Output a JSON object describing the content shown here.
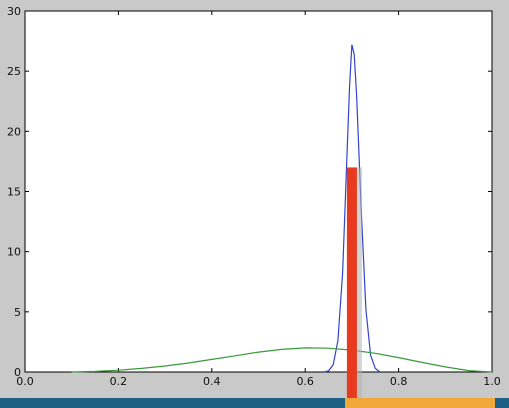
{
  "colors": {
    "background": "#c9c9c9",
    "plot_background": "#ffffff",
    "series_narrow": "#3344cc",
    "series_wide": "#3a9a3a",
    "marker": "#e83a1f",
    "bottom_bar": "#1f5f86",
    "bottom_accent": "#f0a83a"
  },
  "chart_data": {
    "type": "line",
    "title": "",
    "xlabel": "",
    "ylabel": "",
    "xlim": [
      0.0,
      1.0
    ],
    "ylim": [
      0,
      30
    ],
    "grid": false,
    "xticks": [
      0.0,
      0.2,
      0.4,
      0.6,
      0.8,
      1.0
    ],
    "xtick_labels": [
      "0.0",
      "0.2",
      "0.4",
      "0.6",
      "0.8",
      "1.0"
    ],
    "yticks": [
      0,
      5,
      10,
      15,
      20,
      25,
      30
    ],
    "ytick_labels": [
      "0",
      "5",
      "10",
      "15",
      "20",
      "25",
      "30"
    ],
    "series": [
      {
        "color": "#3344cc",
        "x": [
          0.64,
          0.65,
          0.66,
          0.67,
          0.68,
          0.69,
          0.695,
          0.7,
          0.705,
          0.71,
          0.72,
          0.73,
          0.74,
          0.75,
          0.76
        ],
        "y": [
          0.0,
          0.1,
          0.6,
          2.6,
          8.2,
          18.5,
          23.8,
          27.2,
          26.4,
          23.0,
          13.5,
          5.2,
          1.4,
          0.3,
          0.0
        ]
      },
      {
        "color": "#3a9a3a",
        "x": [
          0.1,
          0.15,
          0.2,
          0.25,
          0.3,
          0.35,
          0.4,
          0.45,
          0.5,
          0.55,
          0.6,
          0.65,
          0.7,
          0.75,
          0.8,
          0.85,
          0.9,
          0.95,
          1.0
        ],
        "y": [
          0.0,
          0.05,
          0.15,
          0.3,
          0.5,
          0.75,
          1.05,
          1.35,
          1.65,
          1.88,
          2.0,
          1.98,
          1.82,
          1.55,
          1.2,
          0.8,
          0.42,
          0.12,
          0.0
        ]
      }
    ],
    "marker_bar": {
      "x": 0.7,
      "height": 17
    }
  }
}
